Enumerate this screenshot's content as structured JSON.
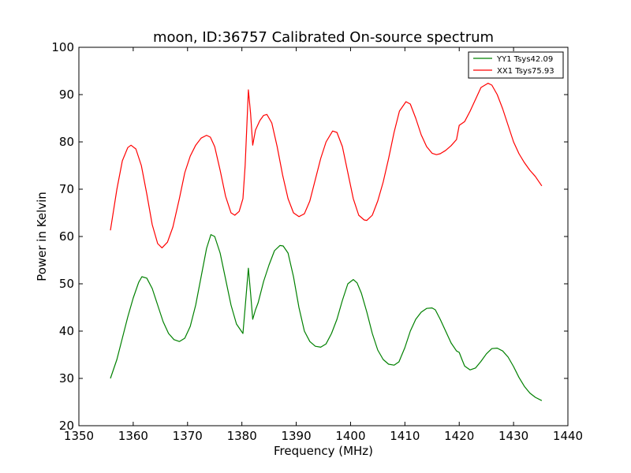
{
  "chart_data": {
    "type": "line",
    "title": "moon, ID:36757 Calibrated On-source spectrum",
    "xlabel": "Frequency (MHz)",
    "ylabel": "Power in Kelvin",
    "xlim": [
      1350,
      1440
    ],
    "ylim": [
      20,
      100
    ],
    "xticks": [
      "1350",
      "1360",
      "1370",
      "1380",
      "1390",
      "1400",
      "1410",
      "1420",
      "1430",
      "1440"
    ],
    "yticks": [
      "20",
      "30",
      "40",
      "50",
      "60",
      "70",
      "80",
      "90",
      "100"
    ],
    "grid": false,
    "legend_position": "top-right",
    "series": [
      {
        "name": "YY1 Tsys42.09",
        "color": "#008000",
        "x": [
          1355.8,
          1357,
          1358,
          1359,
          1360,
          1361,
          1361.6,
          1362.5,
          1363.5,
          1364.5,
          1365.5,
          1366.5,
          1367.5,
          1368.5,
          1369.5,
          1370.5,
          1371.5,
          1372.5,
          1373.5,
          1374.3,
          1375,
          1376,
          1377,
          1378,
          1379,
          1380.2,
          1380.6,
          1381.2,
          1381.6,
          1382,
          1382.5,
          1383,
          1384,
          1385,
          1386,
          1387,
          1387.6,
          1388.5,
          1389.5,
          1390.5,
          1391.5,
          1392.5,
          1393.5,
          1394.5,
          1395.5,
          1396.5,
          1397.5,
          1398.5,
          1399.5,
          1400.5,
          1401.2,
          1402,
          1403,
          1404,
          1405,
          1406,
          1407,
          1408,
          1408.9,
          1410,
          1411,
          1412,
          1413,
          1414,
          1415,
          1415.6,
          1416.5,
          1417.5,
          1418.5,
          1419.5,
          1420,
          1420.5,
          1421,
          1422,
          1423,
          1424,
          1425,
          1426,
          1427,
          1428,
          1429,
          1430,
          1431,
          1432,
          1433,
          1434,
          1435.2
        ],
        "y": [
          30,
          34,
          38.5,
          43,
          47,
          50.3,
          51.5,
          51.2,
          49,
          45.5,
          42,
          39.5,
          38.2,
          37.8,
          38.5,
          41,
          45.5,
          51.5,
          57.5,
          60.4,
          60,
          56.5,
          51,
          45.5,
          41.5,
          39.5,
          45,
          53.3,
          48,
          42.5,
          44.5,
          46,
          50.5,
          54,
          57,
          58.1,
          58,
          56.5,
          51.5,
          45,
          40,
          37.8,
          36.8,
          36.6,
          37.3,
          39.5,
          42.5,
          46.5,
          50,
          50.9,
          50.2,
          48,
          44,
          39.5,
          36,
          34,
          33,
          32.8,
          33.5,
          36.5,
          40,
          42.5,
          44,
          44.8,
          44.9,
          44.5,
          42.5,
          40,
          37.5,
          35.8,
          35.5,
          34,
          32.6,
          31.8,
          32.2,
          33.6,
          35.2,
          36.3,
          36.4,
          35.8,
          34.5,
          32.5,
          30.2,
          28.3,
          26.9,
          26,
          25.3
        ]
      },
      {
        "name": "XX1 Tsys75.93",
        "color": "#ff0000",
        "x": [
          1355.8,
          1357,
          1358,
          1359,
          1359.6,
          1360.5,
          1361.5,
          1362.5,
          1363.5,
          1364.5,
          1365.3,
          1366.3,
          1367.3,
          1368.5,
          1369.5,
          1370.5,
          1371.5,
          1372.5,
          1373.5,
          1374.2,
          1375,
          1376,
          1377,
          1378,
          1378.7,
          1379.5,
          1380.2,
          1380.6,
          1381.2,
          1381.6,
          1382,
          1382.5,
          1383.3,
          1384,
          1384.6,
          1385.5,
          1386.5,
          1387.5,
          1388.5,
          1389.5,
          1390.5,
          1391.5,
          1392.5,
          1393.5,
          1394.5,
          1395.5,
          1396.7,
          1397.5,
          1398.5,
          1399.5,
          1400.5,
          1401.5,
          1402.5,
          1403,
          1404,
          1405,
          1406,
          1407,
          1408,
          1409,
          1410.2,
          1411,
          1412,
          1413,
          1414,
          1415,
          1415.8,
          1416.5,
          1417.5,
          1418.5,
          1419.5,
          1420,
          1421,
          1422,
          1423,
          1424,
          1425.3,
          1426,
          1427,
          1428,
          1429,
          1430,
          1431,
          1432,
          1433,
          1434,
          1435.2
        ],
        "y": [
          61.3,
          70,
          76,
          78.8,
          79.3,
          78.5,
          75,
          69,
          62.5,
          58.5,
          57.6,
          58.8,
          62,
          68,
          73.5,
          77,
          79.3,
          80.8,
          81.4,
          81,
          79,
          74,
          68.5,
          65,
          64.5,
          65.3,
          68,
          75,
          91,
          86,
          79.3,
          82.5,
          84.5,
          85.6,
          85.8,
          84,
          79,
          73,
          68,
          65,
          64.2,
          64.8,
          67.5,
          72,
          76.5,
          80,
          82.3,
          82,
          79,
          73.5,
          68,
          64.5,
          63.5,
          63.4,
          64.5,
          67.5,
          71.5,
          76.5,
          82,
          86.5,
          88.5,
          88,
          85,
          81.5,
          79,
          77.6,
          77.3,
          77.5,
          78.2,
          79.2,
          80.5,
          83.5,
          84.3,
          86.5,
          89,
          91.5,
          92.4,
          92,
          90,
          87,
          83.5,
          80,
          77.5,
          75.6,
          74,
          72.7,
          70.7
        ]
      }
    ]
  }
}
